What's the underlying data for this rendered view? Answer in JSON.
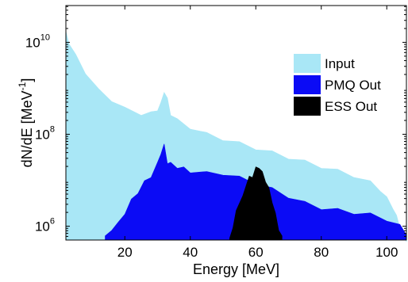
{
  "chart_data": {
    "type": "area",
    "xlabel": "Energy [MeV]",
    "ylabel_main": "dN/dE [MeV",
    "ylabel_sup": "-1",
    "ylabel_close": "]",
    "xlim": [
      2,
      106
    ],
    "ylim_log10": [
      5.7,
      10.8
    ],
    "y_scale": "log",
    "grid": false,
    "legend_position": "right",
    "x_ticks": [
      20,
      40,
      60,
      80,
      100
    ],
    "y_ticks": [
      {
        "log10": 6,
        "base": "10",
        "exp": "6"
      },
      {
        "log10": 8,
        "base": "10",
        "exp": "8"
      },
      {
        "log10": 10,
        "base": "10",
        "exp": "10"
      }
    ],
    "series": [
      {
        "name": "Input",
        "color": "#a9e7f6",
        "x": [
          2,
          3,
          5,
          8,
          12,
          16,
          20,
          25,
          28,
          30,
          31,
          32,
          33,
          34,
          36,
          40,
          45,
          50,
          55,
          60,
          65,
          70,
          75,
          80,
          85,
          90,
          95,
          98,
          100,
          102,
          103,
          104,
          105,
          106
        ],
        "log10": [
          10.2,
          10.0,
          9.7,
          9.35,
          8.95,
          8.75,
          8.55,
          8.45,
          8.45,
          8.55,
          8.65,
          8.95,
          8.75,
          8.45,
          8.3,
          8.15,
          8.0,
          7.9,
          7.8,
          7.7,
          7.6,
          7.5,
          7.4,
          7.3,
          7.2,
          7.1,
          6.95,
          6.8,
          6.6,
          6.4,
          6.2,
          6.0,
          5.8,
          5.7
        ]
      },
      {
        "name": "PMQ Out",
        "color": "#0b0bf5",
        "x": [
          14,
          16,
          18,
          20,
          22,
          24,
          26,
          28,
          30,
          31,
          32,
          33,
          34,
          36,
          38,
          40,
          45,
          50,
          55,
          60,
          65,
          70,
          75,
          80,
          85,
          90,
          95,
          100,
          104,
          106
        ],
        "log10": [
          5.75,
          5.95,
          6.05,
          6.3,
          6.55,
          6.75,
          6.95,
          7.1,
          7.35,
          7.6,
          7.75,
          7.4,
          7.35,
          7.3,
          7.25,
          7.2,
          7.15,
          7.15,
          7.05,
          6.95,
          6.8,
          6.65,
          6.5,
          6.4,
          6.35,
          6.3,
          6.25,
          6.15,
          6.0,
          5.85
        ]
      },
      {
        "name": "ESS Out",
        "color": "#000000",
        "x": [
          52,
          53,
          54,
          56,
          58,
          59,
          60,
          61,
          62,
          63,
          64,
          65,
          66,
          67,
          68
        ],
        "log10": [
          5.7,
          6.0,
          6.3,
          6.7,
          7.05,
          7.1,
          7.25,
          7.3,
          7.15,
          7.0,
          6.8,
          6.55,
          6.25,
          5.95,
          5.75
        ]
      }
    ]
  }
}
